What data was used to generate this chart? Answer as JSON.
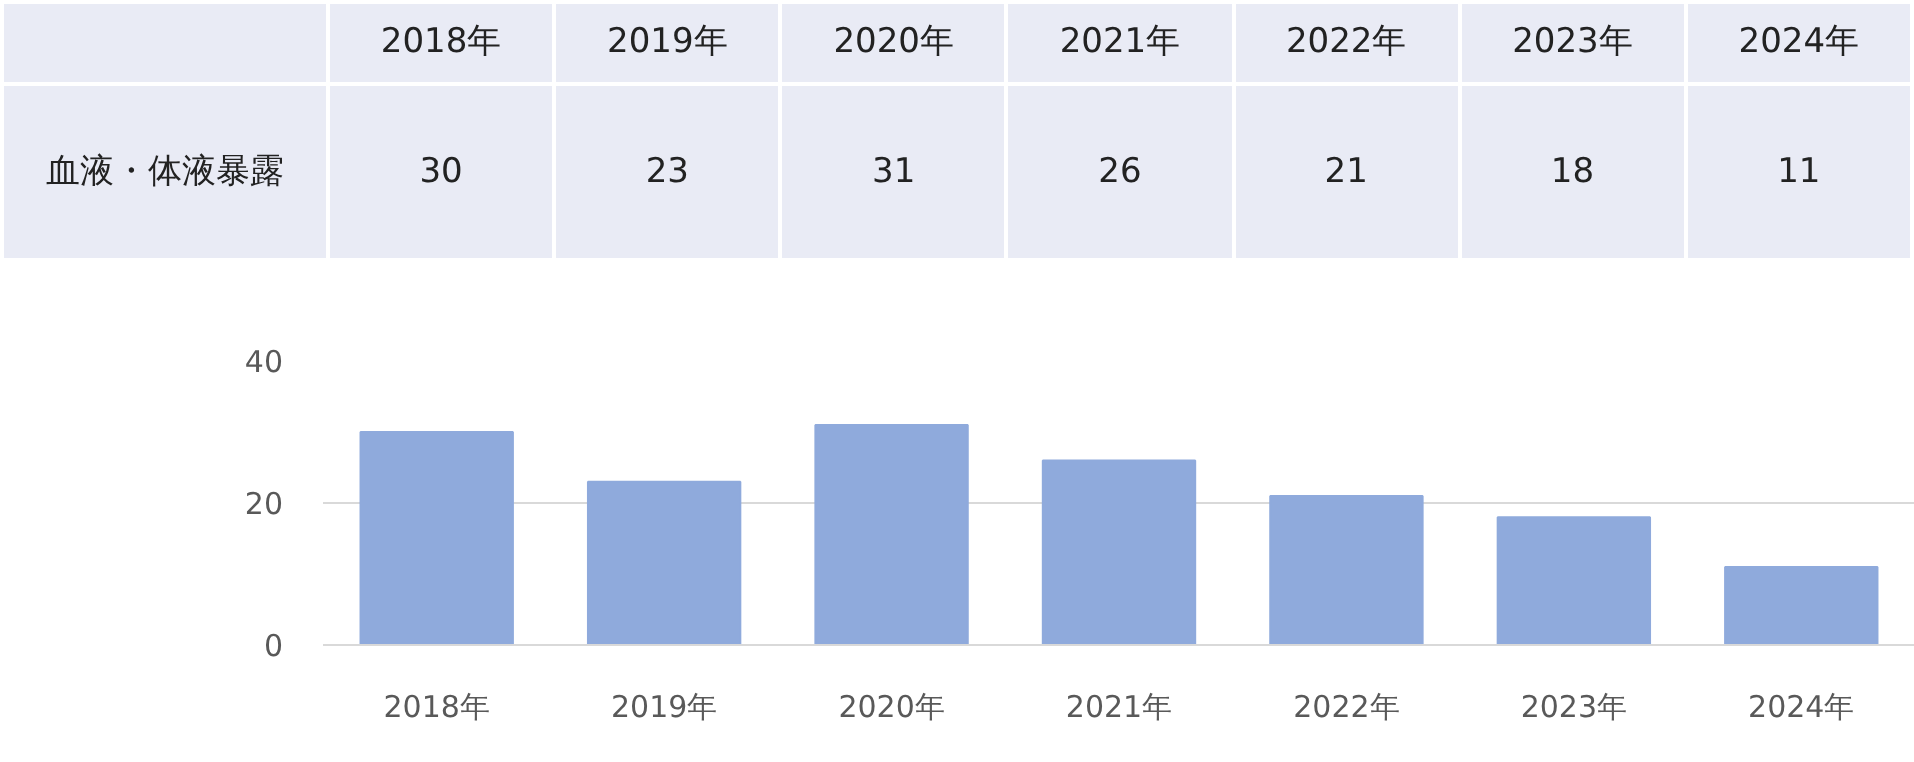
{
  "chart_data": {
    "type": "bar",
    "categories": [
      "2018年",
      "2019年",
      "2020年",
      "2021年",
      "2022年",
      "2023年",
      "2024年"
    ],
    "series": [
      {
        "name": "血液・体液暴露",
        "color": "#8faadc",
        "values": [
          30,
          23,
          31,
          26,
          21,
          18,
          11
        ]
      }
    ],
    "ylim": [
      0,
      40
    ],
    "yticks": [
      0,
      20,
      40
    ],
    "grid": "y",
    "data_labels": true
  }
}
